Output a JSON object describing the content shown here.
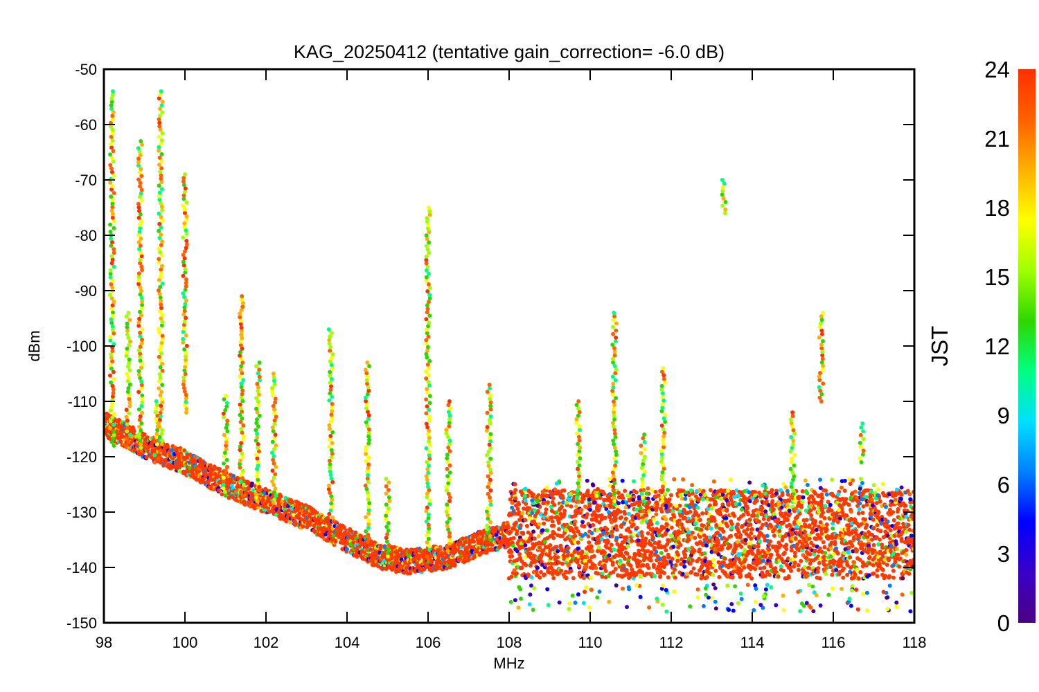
{
  "chart_data": {
    "type": "scatter",
    "title": "KAG_20250412 (tentative gain_correction= -6.0 dB)",
    "xlabel": "MHz",
    "ylabel": "dBm",
    "xlim": [
      98,
      118
    ],
    "ylim": [
      -150,
      -50
    ],
    "x_ticks": [
      "98",
      "100",
      "102",
      "104",
      "106",
      "108",
      "110",
      "112",
      "114",
      "116",
      "118"
    ],
    "y_ticks": [
      "-50",
      "-60",
      "-70",
      "-80",
      "-90",
      "-100",
      "-110",
      "-120",
      "-130",
      "-140",
      "-150"
    ],
    "grid": false,
    "colorbar": {
      "label": "JST",
      "range": [
        0,
        24
      ],
      "ticks": [
        "0",
        "3",
        "6",
        "9",
        "12",
        "15",
        "18",
        "21",
        "24"
      ],
      "colormap": [
        "#4b0082",
        "#3a00c8",
        "#0000ff",
        "#0080ff",
        "#00e0ff",
        "#00ff80",
        "#2ed700",
        "#a0ff00",
        "#ffff00",
        "#ffb000",
        "#ff6000",
        "#ff3000"
      ]
    },
    "noise_floor": [
      {
        "x": 98.0,
        "y": -114
      },
      {
        "x": 99.0,
        "y": -118
      },
      {
        "x": 100.0,
        "y": -121
      },
      {
        "x": 101.0,
        "y": -125
      },
      {
        "x": 102.0,
        "y": -128
      },
      {
        "x": 103.0,
        "y": -131
      },
      {
        "x": 104.0,
        "y": -135
      },
      {
        "x": 104.8,
        "y": -138
      },
      {
        "x": 105.5,
        "y": -139
      },
      {
        "x": 106.5,
        "y": -138
      },
      {
        "x": 107.5,
        "y": -135
      },
      {
        "x": 108.0,
        "y": -134
      },
      {
        "x": 118.0,
        "y": -134
      }
    ],
    "signals": [
      {
        "x": 98.2,
        "y_top": -54,
        "y_bottom": -118
      },
      {
        "x": 98.6,
        "y_top": -94,
        "y_bottom": -118
      },
      {
        "x": 98.9,
        "y_top": -63,
        "y_bottom": -119
      },
      {
        "x": 99.3,
        "y_top": -110,
        "y_bottom": -121
      },
      {
        "x": 99.4,
        "y_top": -54,
        "y_bottom": -119
      },
      {
        "x": 100.0,
        "y_top": -69,
        "y_bottom": -112
      },
      {
        "x": 101.0,
        "y_top": -109,
        "y_bottom": -127
      },
      {
        "x": 101.4,
        "y_top": -91,
        "y_bottom": -127
      },
      {
        "x": 101.8,
        "y_top": -103,
        "y_bottom": -128
      },
      {
        "x": 102.2,
        "y_top": -105,
        "y_bottom": -129
      },
      {
        "x": 103.6,
        "y_top": -97,
        "y_bottom": -131
      },
      {
        "x": 104.5,
        "y_top": -103,
        "y_bottom": -136
      },
      {
        "x": 105.0,
        "y_top": -124,
        "y_bottom": -138
      },
      {
        "x": 106.0,
        "y_top": -75,
        "y_bottom": -138
      },
      {
        "x": 106.5,
        "y_top": -110,
        "y_bottom": -137
      },
      {
        "x": 107.5,
        "y_top": -107,
        "y_bottom": -135
      },
      {
        "x": 109.7,
        "y_top": -110,
        "y_bottom": -128
      },
      {
        "x": 110.6,
        "y_top": -94,
        "y_bottom": -128
      },
      {
        "x": 111.3,
        "y_top": -116,
        "y_bottom": -128
      },
      {
        "x": 111.8,
        "y_top": -104,
        "y_bottom": -128
      },
      {
        "x": 113.3,
        "y_top": -70,
        "y_bottom": -76
      },
      {
        "x": 115.0,
        "y_top": -112,
        "y_bottom": -128
      },
      {
        "x": 115.7,
        "y_top": -94,
        "y_bottom": -110
      },
      {
        "x": 116.7,
        "y_top": -114,
        "y_bottom": -121
      }
    ]
  }
}
